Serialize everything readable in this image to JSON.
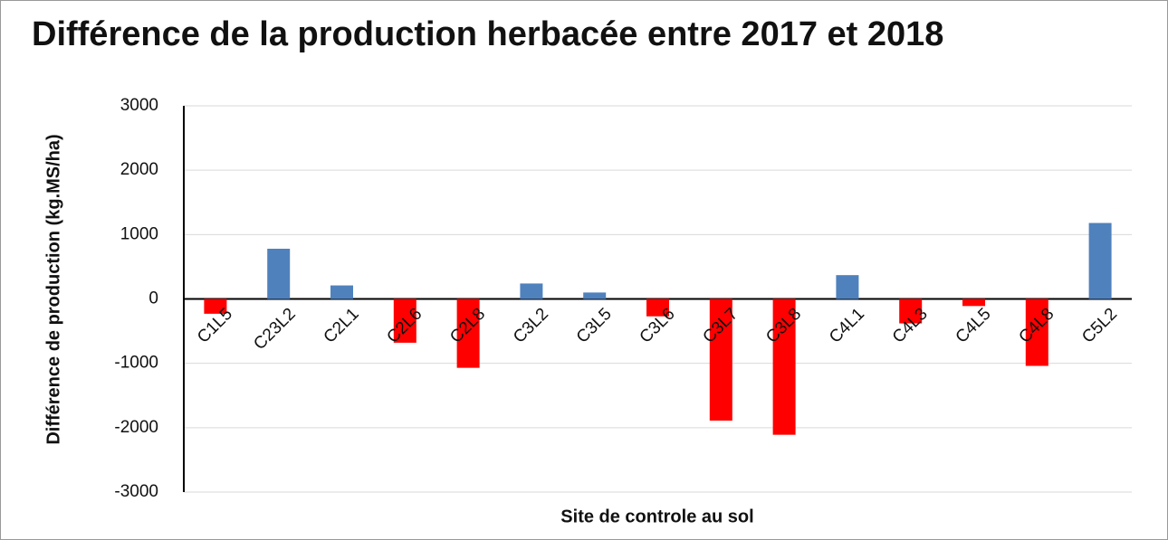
{
  "chart_data": {
    "type": "bar",
    "title": "Différence de la production herbacée entre 2017 et 2018",
    "y_label": "Différence de production (kg.MS/ha)",
    "x_label": "Site de controle au sol",
    "categories": [
      "C1L5",
      "C23L2",
      "C2L1",
      "C2L6",
      "C2L8",
      "C3L2",
      "C3L5",
      "C3L6",
      "C3L7",
      "C3L8",
      "C4L1",
      "C4L3",
      "C4L5",
      "C4L8",
      "C5L2"
    ],
    "values": [
      -230,
      780,
      210,
      -680,
      -1070,
      240,
      100,
      -270,
      -1890,
      -2110,
      370,
      -380,
      -110,
      -1040,
      1180
    ],
    "positive_color": "#4f81bd",
    "negative_color": "#ff0000",
    "ylim": [
      -3000,
      3000
    ],
    "yticks": [
      -3000,
      -2000,
      -1000,
      0,
      1000,
      2000,
      3000
    ],
    "grid": true
  }
}
